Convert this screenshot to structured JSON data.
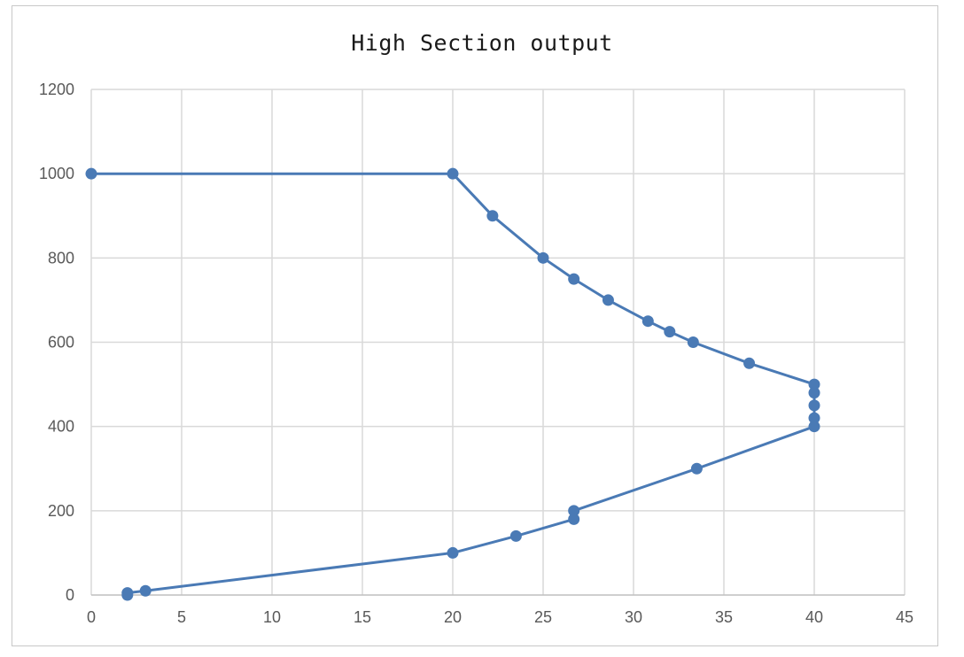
{
  "chart_data": {
    "type": "scatter",
    "title": "High Section output",
    "xlabel": "",
    "ylabel": "",
    "xlim": [
      0,
      45
    ],
    "ylim": [
      0,
      1200
    ],
    "xticks": [
      0,
      5,
      10,
      15,
      20,
      25,
      30,
      35,
      40,
      45
    ],
    "yticks": [
      0,
      200,
      400,
      600,
      800,
      1000,
      1200
    ],
    "grid": true,
    "lines": true,
    "markers": true,
    "series": [
      {
        "x": [
          0,
          20,
          22.2,
          25,
          26.7,
          28.6,
          30.8,
          32,
          33.3,
          36.4,
          40,
          40,
          40,
          40,
          40,
          33.5,
          26.7,
          26.7,
          23.5,
          20,
          3,
          2,
          2
        ],
        "y": [
          1000,
          1000,
          900,
          800,
          750,
          700,
          650,
          625,
          600,
          550,
          500,
          480,
          450,
          420,
          400,
          300,
          200,
          180,
          140,
          100,
          10,
          5,
          0
        ]
      }
    ],
    "colors": {
      "series": "#4a7ab5",
      "grid": "#d9d9d9",
      "axis": "#bfbfbf",
      "tick_text": "#595959"
    }
  }
}
